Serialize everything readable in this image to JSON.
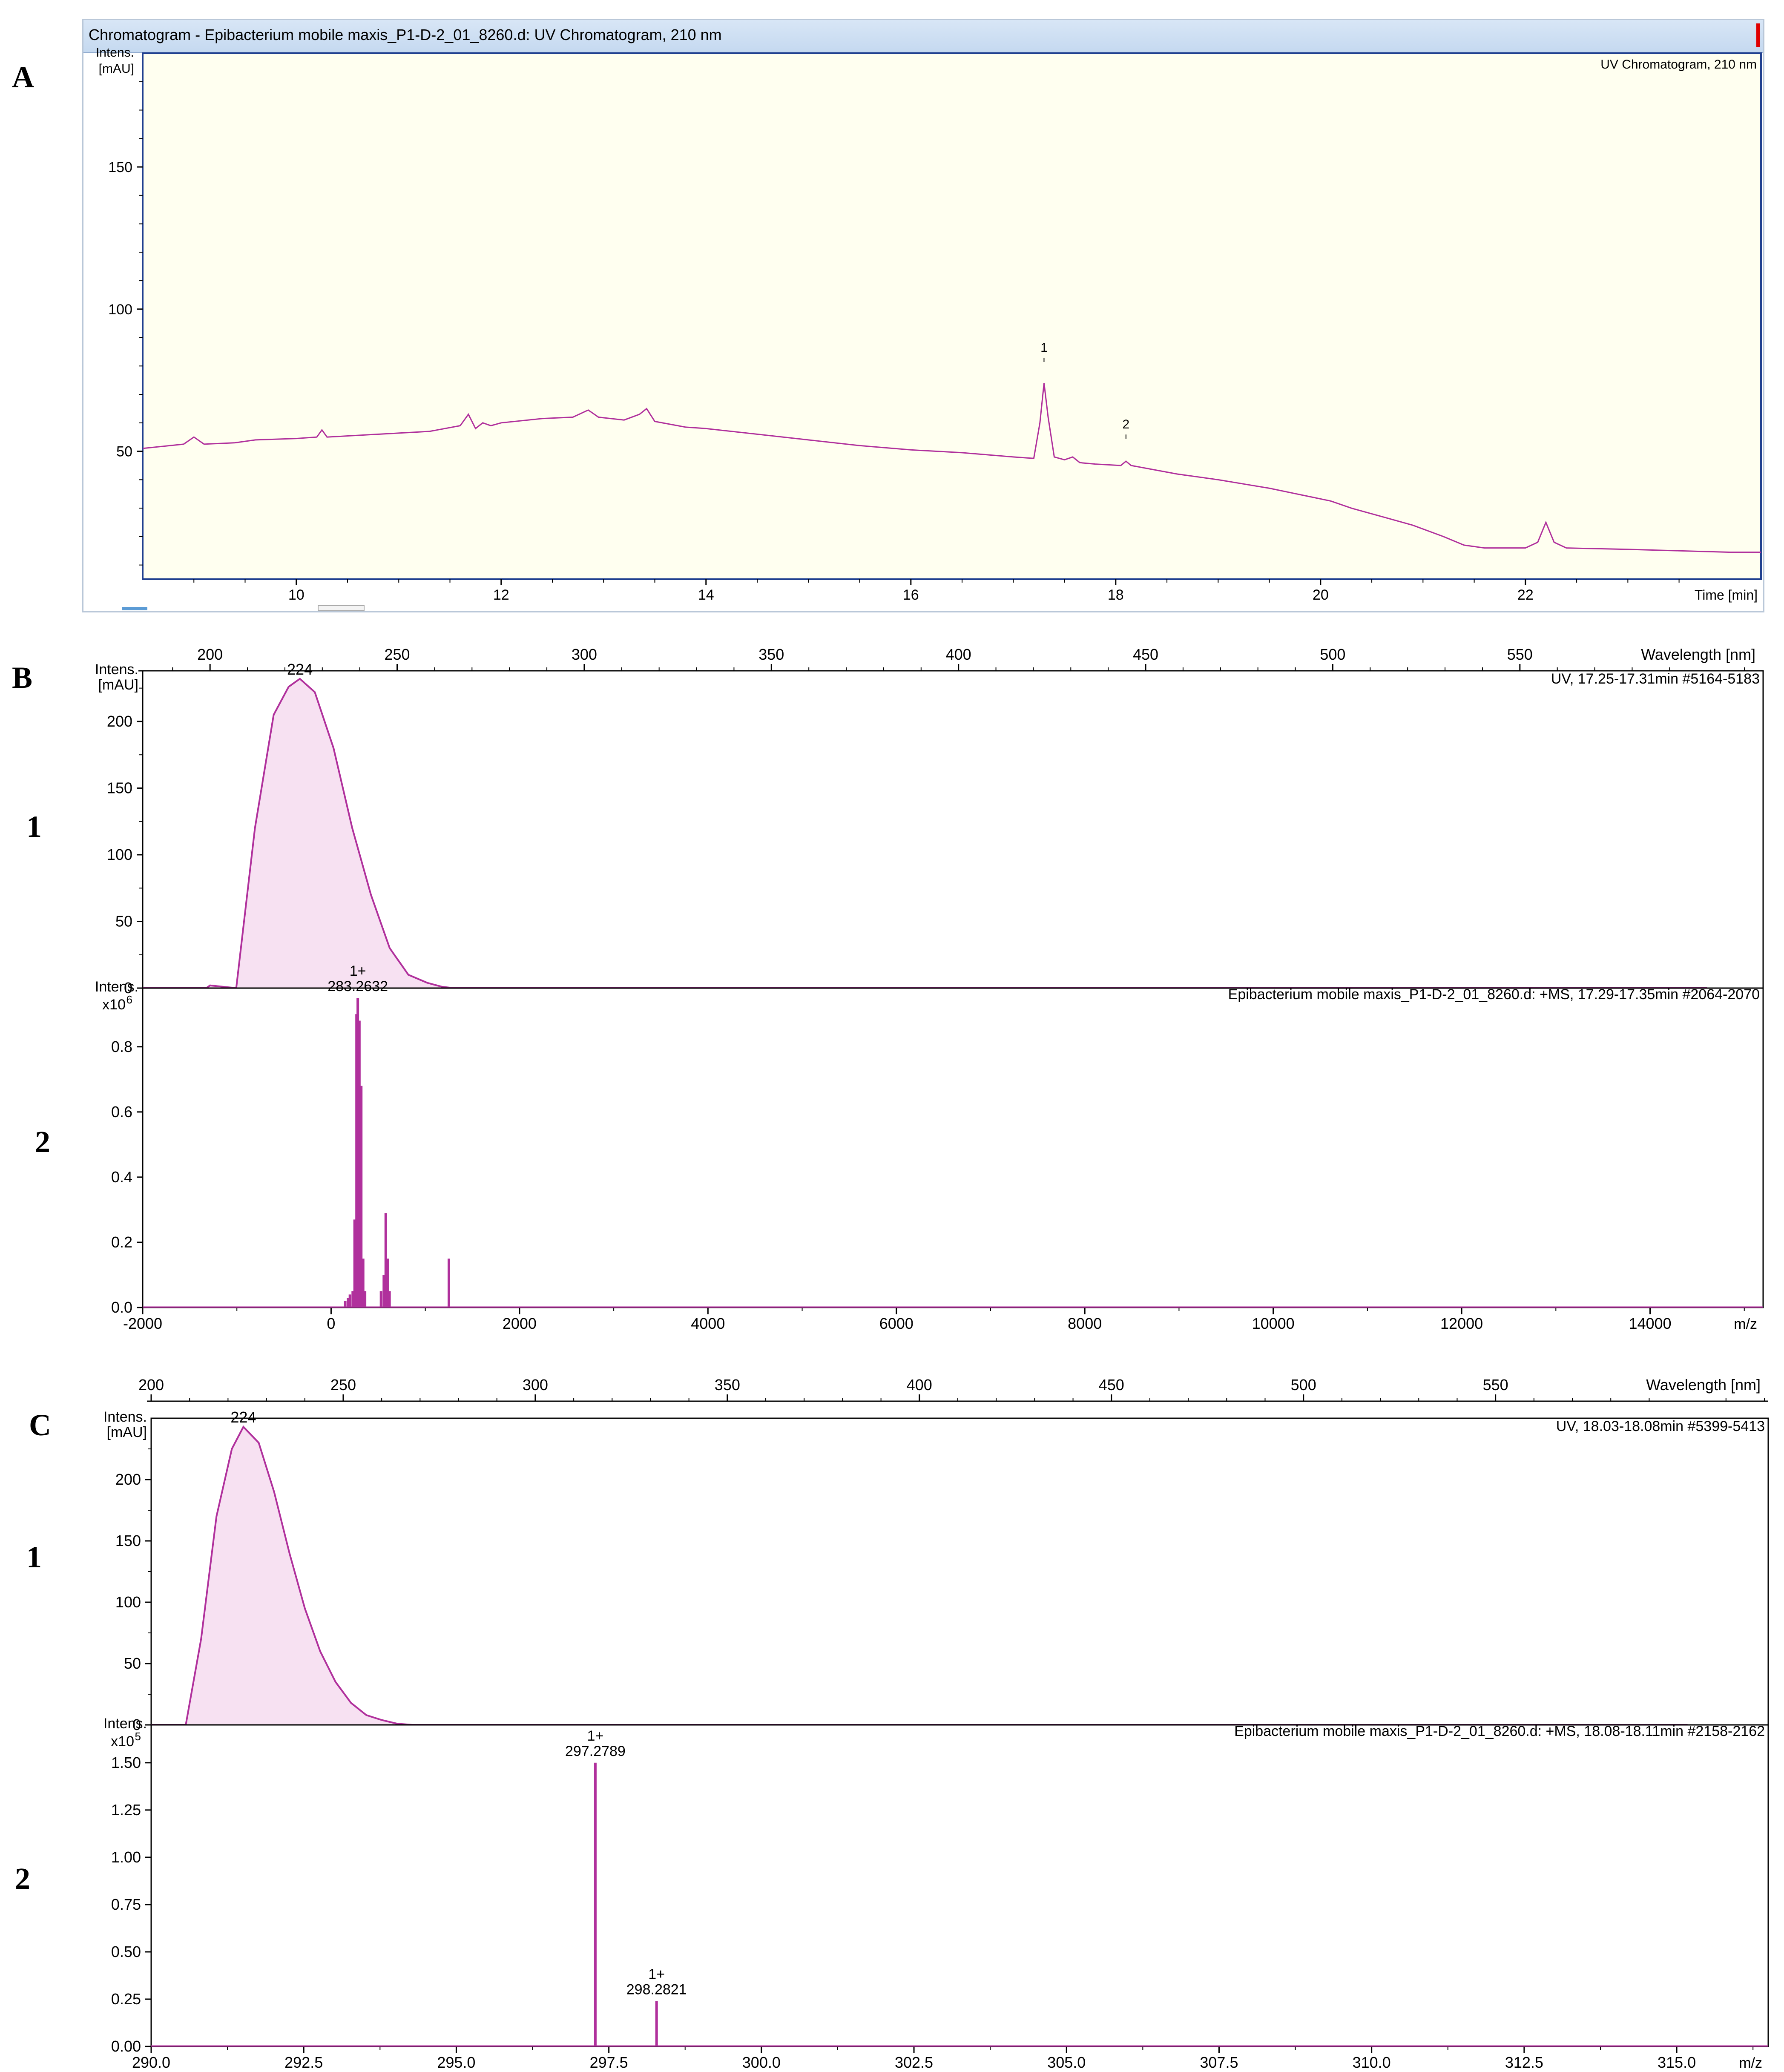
{
  "panels": {
    "A": {
      "letter": "A"
    },
    "B": {
      "letter": "B",
      "sub1": "1",
      "sub2": "2"
    },
    "C": {
      "letter": "C",
      "sub1": "1",
      "sub2": "2"
    }
  },
  "window": {
    "title": "Chromatogram - Epibacterium mobile maxis_P1-D-2_01_8260.d: UV Chromatogram, 210 nm"
  },
  "colors": {
    "trace": "#b0309c",
    "fill": "#f7e1f2",
    "plot_bg_A": "#fffff0",
    "frame": "#1f3f8f"
  },
  "chart_data": [
    {
      "id": "A",
      "type": "line",
      "title": "UV Chromatogram, 210 nm",
      "xlabel": "Time [min]",
      "ylabel": "Intens. [mAU]",
      "xlim": [
        8.5,
        24.3
      ],
      "ylim": [
        5,
        190
      ],
      "xticks": [
        10,
        12,
        14,
        16,
        18,
        20,
        22
      ],
      "yticks": [
        50,
        100,
        150
      ],
      "grid": false,
      "peak_labels": [
        {
          "label": "1",
          "x": 17.3,
          "y": 82
        },
        {
          "label": "2",
          "x": 18.1,
          "y": 55
        }
      ],
      "series": [
        {
          "x": [
            8.5,
            8.9,
            9.0,
            9.1,
            9.4,
            9.6,
            10.0,
            10.2,
            10.25,
            10.3,
            10.8,
            11.3,
            11.6,
            11.68,
            11.75,
            11.82,
            11.9,
            12.0,
            12.4,
            12.7,
            12.85,
            12.95,
            13.2,
            13.35,
            13.42,
            13.5,
            13.8,
            14.0,
            14.5,
            15.0,
            15.5,
            16.0,
            16.5,
            17.0,
            17.2,
            17.26,
            17.3,
            17.34,
            17.4,
            17.5,
            17.58,
            17.65,
            17.8,
            18.05,
            18.1,
            18.15,
            18.3,
            18.6,
            19.0,
            19.5,
            19.9,
            20.1,
            20.3,
            20.6,
            20.9,
            21.2,
            21.4,
            21.6,
            22.0,
            22.12,
            22.2,
            22.28,
            22.4,
            23.0,
            23.5,
            24.0,
            24.3
          ],
          "y": [
            51,
            52.5,
            55,
            52.5,
            53,
            54,
            54.5,
            55,
            57.5,
            55,
            56,
            57,
            59,
            63,
            58,
            60,
            59,
            60,
            61.5,
            62,
            64.5,
            62,
            61,
            63,
            65,
            60.5,
            58.5,
            58,
            56,
            54,
            52,
            50.5,
            49.5,
            48,
            47.5,
            60,
            74,
            62,
            48,
            47,
            48,
            46,
            45.5,
            45,
            46.5,
            45,
            44,
            42,
            40,
            37,
            34,
            32.5,
            30,
            27,
            24,
            20,
            17,
            16,
            16,
            18,
            25,
            18,
            16,
            15.5,
            15,
            14.5,
            14.5
          ]
        }
      ]
    },
    {
      "id": "B1",
      "type": "area",
      "title": "UV, 17.25-17.31min #5164-5183",
      "xlabel": "Wavelength [nm]",
      "ylabel": "Intens. [mAU]",
      "xlim": [
        182,
        615
      ],
      "ylim": [
        0,
        238
      ],
      "xticks": [
        200,
        250,
        300,
        350,
        400,
        450,
        500,
        550
      ],
      "yticks": [
        0,
        50,
        100,
        150,
        200
      ],
      "peak_labels": [
        {
          "label": "224",
          "x": 224,
          "y": 232
        }
      ],
      "series": [
        {
          "x": [
            182,
            199,
            200,
            207,
            212,
            217,
            221,
            224,
            228,
            233,
            238,
            243,
            248,
            253,
            258,
            262,
            265,
            600
          ],
          "y": [
            0,
            0,
            2,
            0,
            120,
            205,
            226,
            232,
            222,
            180,
            120,
            70,
            30,
            10,
            4,
            1,
            0,
            0
          ]
        }
      ]
    },
    {
      "id": "B2",
      "type": "bar",
      "title": "Epibacterium mobile maxis_P1-D-2_01_8260.d: +MS, 17.29-17.35min #2064-2070",
      "xlabel": "m/z",
      "ylabel": "Intens. x10^6",
      "axis_exponent_base": "x10",
      "axis_exponent": "6",
      "xlim": [
        -2000,
        15200
      ],
      "ylim": [
        0,
        0.98
      ],
      "xticks": [
        -2000,
        0,
        2000,
        4000,
        6000,
        8000,
        10000,
        12000,
        14000
      ],
      "yticks": [
        0.0,
        0.2,
        0.4,
        0.6,
        0.8
      ],
      "peak_labels": [
        {
          "charge": "1+",
          "mz": "283.2632",
          "x": 283.2632,
          "y": 0.95
        }
      ],
      "x": [
        150,
        180,
        200,
        230,
        250,
        270,
        283.2632,
        300,
        320,
        340,
        360,
        530,
        560,
        580,
        600,
        620,
        1250
      ],
      "y": [
        0.02,
        0.03,
        0.04,
        0.05,
        0.27,
        0.9,
        0.95,
        0.88,
        0.68,
        0.15,
        0.05,
        0.05,
        0.1,
        0.29,
        0.15,
        0.05,
        0.15
      ]
    },
    {
      "id": "C1",
      "type": "area",
      "title": "UV, 18.03-18.08min #5399-5413",
      "xlabel": "Wavelength [nm]",
      "ylabel": "Intens. [mAU]",
      "xlim": [
        200,
        621
      ],
      "ylim": [
        0,
        250
      ],
      "xticks": [
        200,
        250,
        300,
        350,
        400,
        450,
        500,
        550
      ],
      "yticks": [
        0,
        50,
        100,
        150,
        200
      ],
      "peak_labels": [
        {
          "label": "224",
          "x": 224,
          "y": 243
        }
      ],
      "series": [
        {
          "x": [
            200,
            209,
            213,
            217,
            221,
            224,
            228,
            232,
            236,
            240,
            244,
            248,
            252,
            256,
            260,
            264,
            268,
            600
          ],
          "y": [
            0,
            0,
            70,
            170,
            225,
            243,
            230,
            190,
            140,
            95,
            60,
            35,
            18,
            8,
            4,
            1,
            0,
            0
          ]
        }
      ]
    },
    {
      "id": "C2",
      "type": "bar",
      "title": "Epibacterium mobile maxis_P1-D-2_01_8260.d: +MS, 18.08-18.11min #2158-2162",
      "xlabel": "m/z",
      "ylabel": "Intens. x10^5",
      "axis_exponent_base": "x10",
      "axis_exponent": "5",
      "xlim": [
        290,
        316.5
      ],
      "ylim": [
        0,
        1.7
      ],
      "xticks": [
        290.0,
        292.5,
        295.0,
        297.5,
        300.0,
        302.5,
        305.0,
        307.5,
        310.0,
        312.5,
        315.0
      ],
      "yticks": [
        0.0,
        0.25,
        0.5,
        0.75,
        1.0,
        1.25,
        1.5
      ],
      "peak_labels": [
        {
          "charge": "1+",
          "mz": "297.2789",
          "x": 297.2789,
          "y": 1.5
        },
        {
          "charge": "1+",
          "mz": "298.2821",
          "x": 298.2821,
          "y": 0.24
        }
      ],
      "x": [
        297.2789,
        298.2821
      ],
      "y": [
        1.5,
        0.24
      ]
    }
  ]
}
